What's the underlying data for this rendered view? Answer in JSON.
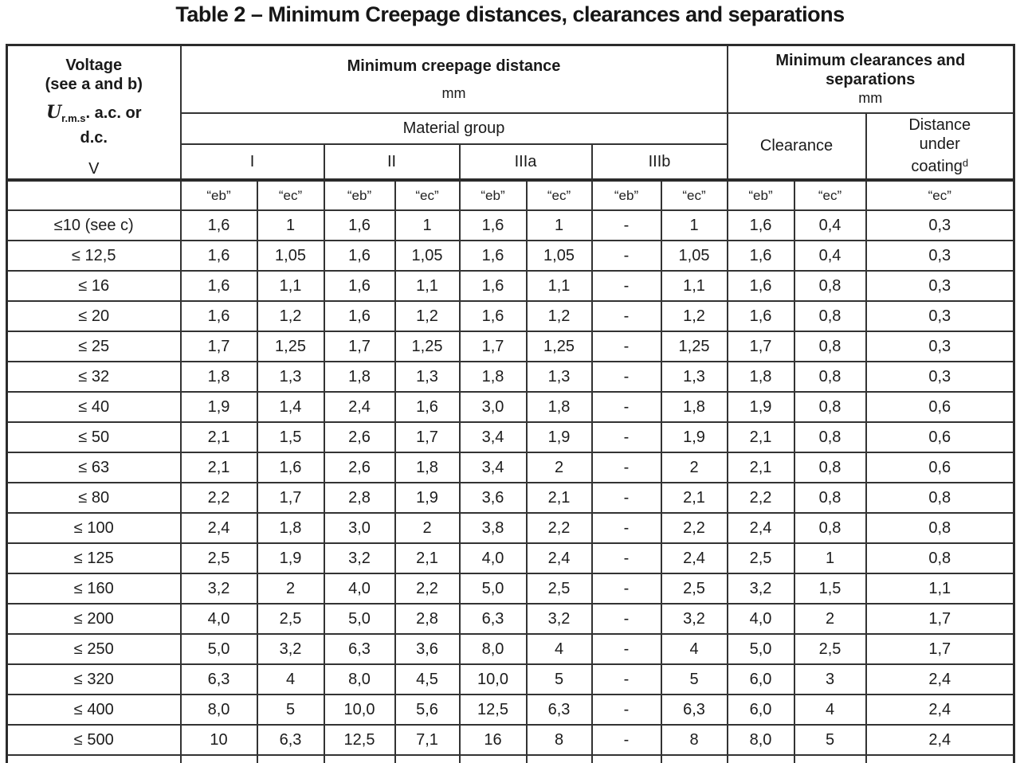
{
  "title": "Table 2 – Minimum Creepage distances, clearances and separations",
  "colors": {
    "background": "#ffffff",
    "text": "#1a1a1a",
    "border": "#333333"
  },
  "table": {
    "voltage_header": {
      "line1": "Voltage",
      "line2": "(see a and b)",
      "symbol": "U",
      "symbol_sub": "r.m.s",
      "symbol_rest": ". a.c. or",
      "line4": "d.c.",
      "unit": "V"
    },
    "creepage_header": {
      "title": "Minimum creepage distance",
      "unit": "mm",
      "group_label": "Material group",
      "groups": [
        "I",
        "II",
        "IIIa",
        "IIIb"
      ]
    },
    "clearance_header": {
      "title": "Minimum clearances and separations",
      "unit": "mm",
      "clearance_label": "Clearance",
      "distance_line1": "Distance",
      "distance_line2": "under",
      "distance_line3": "coating",
      "distance_sup": "d"
    },
    "sub_headers": [
      "“eb”",
      "“ec”",
      "“eb”",
      "“ec”",
      "“eb”",
      "“ec”",
      "“eb”",
      "“ec”",
      "“eb”",
      "“ec”",
      "“ec”"
    ],
    "rows": [
      {
        "voltage": "≤10 (see c)",
        "values": [
          "1,6",
          "1",
          "1,6",
          "1",
          "1,6",
          "1",
          "-",
          "1",
          "1,6",
          "0,4",
          "0,3"
        ]
      },
      {
        "voltage": "≤ 12,5",
        "values": [
          "1,6",
          "1,05",
          "1,6",
          "1,05",
          "1,6",
          "1,05",
          "-",
          "1,05",
          "1,6",
          "0,4",
          "0,3"
        ]
      },
      {
        "voltage": "≤ 16",
        "values": [
          "1,6",
          "1,1",
          "1,6",
          "1,1",
          "1,6",
          "1,1",
          "-",
          "1,1",
          "1,6",
          "0,8",
          "0,3"
        ]
      },
      {
        "voltage": "≤ 20",
        "values": [
          "1,6",
          "1,2",
          "1,6",
          "1,2",
          "1,6",
          "1,2",
          "-",
          "1,2",
          "1,6",
          "0,8",
          "0,3"
        ]
      },
      {
        "voltage": "≤ 25",
        "values": [
          "1,7",
          "1,25",
          "1,7",
          "1,25",
          "1,7",
          "1,25",
          "-",
          "1,25",
          "1,7",
          "0,8",
          "0,3"
        ]
      },
      {
        "voltage": "≤ 32",
        "values": [
          "1,8",
          "1,3",
          "1,8",
          "1,3",
          "1,8",
          "1,3",
          "-",
          "1,3",
          "1,8",
          "0,8",
          "0,3"
        ]
      },
      {
        "voltage": "≤ 40",
        "values": [
          "1,9",
          "1,4",
          "2,4",
          "1,6",
          "3,0",
          "1,8",
          "-",
          "1,8",
          "1,9",
          "0,8",
          "0,6"
        ]
      },
      {
        "voltage": "≤ 50",
        "values": [
          "2,1",
          "1,5",
          "2,6",
          "1,7",
          "3,4",
          "1,9",
          "-",
          "1,9",
          "2,1",
          "0,8",
          "0,6"
        ]
      },
      {
        "voltage": "≤ 63",
        "values": [
          "2,1",
          "1,6",
          "2,6",
          "1,8",
          "3,4",
          "2",
          "-",
          "2",
          "2,1",
          "0,8",
          "0,6"
        ]
      },
      {
        "voltage": "≤ 80",
        "values": [
          "2,2",
          "1,7",
          "2,8",
          "1,9",
          "3,6",
          "2,1",
          "-",
          "2,1",
          "2,2",
          "0,8",
          "0,8"
        ]
      },
      {
        "voltage": "≤ 100",
        "values": [
          "2,4",
          "1,8",
          "3,0",
          "2",
          "3,8",
          "2,2",
          "-",
          "2,2",
          "2,4",
          "0,8",
          "0,8"
        ]
      },
      {
        "voltage": "≤ 125",
        "values": [
          "2,5",
          "1,9",
          "3,2",
          "2,1",
          "4,0",
          "2,4",
          "-",
          "2,4",
          "2,5",
          "1",
          "0,8"
        ]
      },
      {
        "voltage": "≤ 160",
        "values": [
          "3,2",
          "2",
          "4,0",
          "2,2",
          "5,0",
          "2,5",
          "-",
          "2,5",
          "3,2",
          "1,5",
          "1,1"
        ]
      },
      {
        "voltage": "≤ 200",
        "values": [
          "4,0",
          "2,5",
          "5,0",
          "2,8",
          "6,3",
          "3,2",
          "-",
          "3,2",
          "4,0",
          "2",
          "1,7"
        ]
      },
      {
        "voltage": "≤ 250",
        "values": [
          "5,0",
          "3,2",
          "6,3",
          "3,6",
          "8,0",
          "4",
          "-",
          "4",
          "5,0",
          "2,5",
          "1,7"
        ]
      },
      {
        "voltage": "≤ 320",
        "values": [
          "6,3",
          "4",
          "8,0",
          "4,5",
          "10,0",
          "5",
          "-",
          "5",
          "6,0",
          "3",
          "2,4"
        ]
      },
      {
        "voltage": "≤ 400",
        "values": [
          "8,0",
          "5",
          "10,0",
          "5,6",
          "12,5",
          "6,3",
          "-",
          "6,3",
          "6,0",
          "4",
          "2,4"
        ]
      },
      {
        "voltage": "≤ 500",
        "values": [
          "10",
          "6,3",
          "12,5",
          "7,1",
          "16",
          "8",
          "-",
          "8",
          "8,0",
          "5",
          "2,4"
        ]
      }
    ]
  }
}
